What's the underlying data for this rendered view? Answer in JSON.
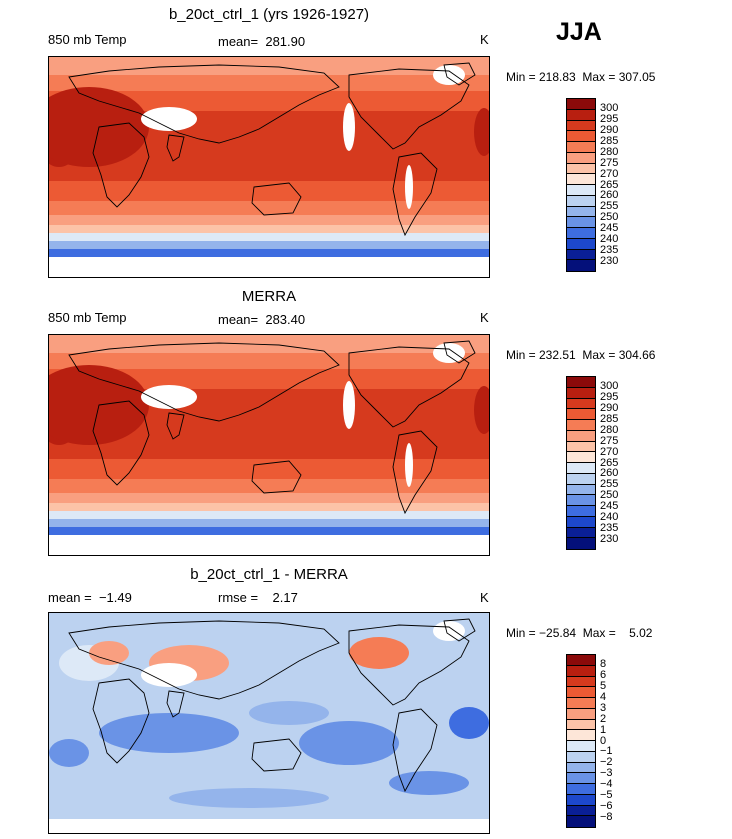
{
  "season": "JJA",
  "panels": [
    {
      "title": "b_20ct_ctrl_1 (yrs 1926-1927)",
      "left_label": "850 mb Temp",
      "center_label": "mean=  281.90",
      "units": "K",
      "minmax": "Min = 218.83  Max = 307.05",
      "colorbar": {
        "labels": [
          "300",
          "295",
          "290",
          "285",
          "280",
          "275",
          "270",
          "265",
          "260",
          "255",
          "250",
          "245",
          "240",
          "235",
          "230"
        ],
        "colors": [
          "#8b0a0a",
          "#b81f10",
          "#d63a1e",
          "#ec5a34",
          "#f57c55",
          "#f99f80",
          "#fcc3a8",
          "#fde6d8",
          "#dde9f7",
          "#bcd2f0",
          "#94b4eb",
          "#6a93e6",
          "#3e6de0",
          "#1d48cc",
          "#0a1f96",
          "#04107a"
        ]
      }
    },
    {
      "title": "MERRA",
      "left_label": "850 mb Temp",
      "center_label": "mean=  283.40",
      "units": "K",
      "minmax": "Min = 232.51  Max = 304.66",
      "colorbar": {
        "labels": [
          "300",
          "295",
          "290",
          "285",
          "280",
          "275",
          "270",
          "265",
          "260",
          "255",
          "250",
          "245",
          "240",
          "235",
          "230"
        ],
        "colors": [
          "#8b0a0a",
          "#b81f10",
          "#d63a1e",
          "#ec5a34",
          "#f57c55",
          "#f99f80",
          "#fcc3a8",
          "#fde6d8",
          "#dde9f7",
          "#bcd2f0",
          "#94b4eb",
          "#6a93e6",
          "#3e6de0",
          "#1d48cc",
          "#0a1f96",
          "#04107a"
        ]
      }
    },
    {
      "title": "b_20ct_ctrl_1 - MERRA",
      "left_label": "mean =  −1.49",
      "center_label": "rmse =    2.17",
      "units": "K",
      "minmax": "Min = −25.84  Max =    5.02",
      "colorbar": {
        "labels": [
          "8",
          "6",
          "5",
          "4",
          "3",
          "2",
          "1",
          "0",
          "−1",
          "−2",
          "−3",
          "−4",
          "−5",
          "−6",
          "−8"
        ],
        "colors": [
          "#8b0a0a",
          "#b81f10",
          "#d63a1e",
          "#ec5a34",
          "#f57c55",
          "#f99f80",
          "#fcc3a8",
          "#fde6d8",
          "#dde9f7",
          "#bcd2f0",
          "#94b4eb",
          "#6a93e6",
          "#3e6de0",
          "#1d48cc",
          "#0a1f96",
          "#04107a"
        ]
      }
    }
  ]
}
